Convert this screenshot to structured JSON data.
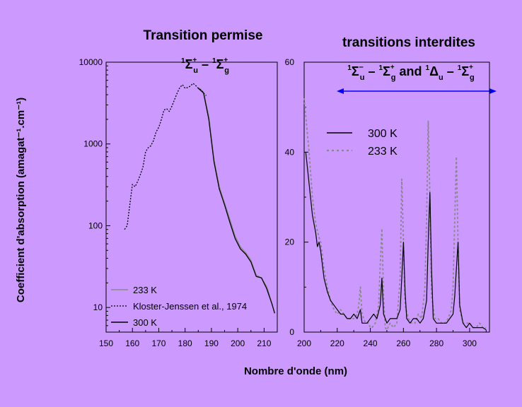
{
  "chart_data": [
    {
      "type": "line",
      "title": "Transition permise",
      "term_label": "¹Σ⁺u – ¹Σ⁺g",
      "xlabel": "Nombre d'onde (nm)",
      "ylabel": "Coefficient d'absorption (amagat⁻¹.cm⁻¹)",
      "xlim": [
        150,
        215
      ],
      "ylim": [
        5,
        10000
      ],
      "yscale": "log",
      "grid": false,
      "legend_position": "bottom-left",
      "x_ticks": [
        "150",
        "160",
        "170",
        "180",
        "190",
        "200",
        "210"
      ],
      "y_ticks": [
        "10",
        "100",
        "1000",
        "10000"
      ],
      "series": [
        {
          "name": "233 K",
          "color": "#888888",
          "style": "solid",
          "points": [
            [
              185,
              4900
            ],
            [
              187,
              4300
            ],
            [
              189,
              2200
            ],
            [
              191,
              650
            ],
            [
              193,
              300
            ],
            [
              195,
              190
            ],
            [
              197,
              120
            ],
            [
              199,
              75
            ],
            [
              201,
              55
            ],
            [
              203,
              47
            ],
            [
              205,
              38
            ],
            [
              207,
              25
            ],
            [
              209,
              23
            ],
            [
              211,
              18
            ],
            [
              213,
              11
            ],
            [
              214,
              8.5
            ]
          ]
        },
        {
          "name": "Kloster-Jenssen et al., 1974",
          "color": "#000000",
          "style": "dotted",
          "points": [
            [
              157,
              90
            ],
            [
              158,
              100
            ],
            [
              159,
              180
            ],
            [
              160,
              320
            ],
            [
              161,
              300
            ],
            [
              162,
              350
            ],
            [
              163,
              420
            ],
            [
              164,
              520
            ],
            [
              165,
              800
            ],
            [
              166,
              900
            ],
            [
              167,
              950
            ],
            [
              168,
              1100
            ],
            [
              169,
              1400
            ],
            [
              170,
              1600
            ],
            [
              171,
              2000
            ],
            [
              172,
              2600
            ],
            [
              173,
              2700
            ],
            [
              174,
              2500
            ],
            [
              175,
              2900
            ],
            [
              176,
              3500
            ],
            [
              177,
              4200
            ],
            [
              178,
              4900
            ],
            [
              179,
              5300
            ],
            [
              180,
              4800
            ],
            [
              181,
              4900
            ],
            [
              182,
              5100
            ],
            [
              183,
              5500
            ],
            [
              184,
              5200
            ],
            [
              185,
              4800
            ],
            [
              186,
              4600
            ],
            [
              187,
              4200
            ],
            [
              188,
              3900
            ]
          ]
        },
        {
          "name": "300 K",
          "color": "#000000",
          "style": "solid",
          "points": [
            [
              185,
              4800
            ],
            [
              187,
              4200
            ],
            [
              189,
              2000
            ],
            [
              191,
              600
            ],
            [
              193,
              280
            ],
            [
              195,
              180
            ],
            [
              197,
              110
            ],
            [
              199,
              70
            ],
            [
              201,
              52
            ],
            [
              203,
              45
            ],
            [
              205,
              36
            ],
            [
              207,
              24
            ],
            [
              209,
              23
            ],
            [
              211,
              17
            ],
            [
              213,
              11
            ],
            [
              214,
              8.5
            ]
          ]
        }
      ]
    },
    {
      "type": "line",
      "title": "transitions interdites",
      "term_label": "¹Σ⁻u – ¹Σ⁺g and ¹Δu – ¹Σ⁺g",
      "xlabel": "Nombre d'onde (nm)",
      "xlim": [
        200,
        312
      ],
      "ylim": [
        0,
        60
      ],
      "yscale": "linear",
      "grid": false,
      "legend_position": "top-left",
      "x_ticks": [
        "200",
        "220",
        "240",
        "260",
        "280",
        "300"
      ],
      "y_ticks": [
        "0",
        "20",
        "40",
        "60"
      ],
      "series": [
        {
          "name": "300 K",
          "color": "#000000",
          "style": "solid",
          "points": [
            [
              201,
              40
            ],
            [
              203,
              33
            ],
            [
              205,
              26
            ],
            [
              207,
              22
            ],
            [
              208,
              19
            ],
            [
              209,
              20
            ],
            [
              210,
              18
            ],
            [
              212,
              12
            ],
            [
              214,
              9
            ],
            [
              216,
              7
            ],
            [
              218,
              6
            ],
            [
              220,
              5
            ],
            [
              222,
              4
            ],
            [
              224,
              4
            ],
            [
              226,
              3
            ],
            [
              228,
              3
            ],
            [
              230,
              4
            ],
            [
              232,
              3
            ],
            [
              234,
              5
            ],
            [
              235,
              2
            ],
            [
              238,
              2
            ],
            [
              240,
              3
            ],
            [
              242,
              4
            ],
            [
              244,
              3
            ],
            [
              246,
              6
            ],
            [
              247,
              12
            ],
            [
              248,
              4
            ],
            [
              250,
              2
            ],
            [
              252,
              3
            ],
            [
              254,
              3
            ],
            [
              256,
              3
            ],
            [
              258,
              5
            ],
            [
              259,
              12
            ],
            [
              260,
              20
            ],
            [
              261,
              9
            ],
            [
              262,
              3
            ],
            [
              264,
              2
            ],
            [
              266,
              3
            ],
            [
              268,
              3
            ],
            [
              270,
              2
            ],
            [
              272,
              3
            ],
            [
              274,
              7
            ],
            [
              275,
              20
            ],
            [
              276,
              31
            ],
            [
              277,
              14
            ],
            [
              278,
              3
            ],
            [
              280,
              2
            ],
            [
              282,
              2
            ],
            [
              284,
              2
            ],
            [
              286,
              2
            ],
            [
              288,
              3
            ],
            [
              290,
              4
            ],
            [
              291,
              8
            ],
            [
              292,
              14
            ],
            [
              293,
              20
            ],
            [
              294,
              6
            ],
            [
              296,
              2
            ],
            [
              298,
              1
            ],
            [
              300,
              2
            ],
            [
              302,
              1
            ],
            [
              304,
              1
            ],
            [
              306,
              1
            ],
            [
              308,
              1
            ],
            [
              310,
              0.5
            ]
          ]
        },
        {
          "name": "233 K",
          "color": "#888888",
          "style": "dotted",
          "points": [
            [
              200,
              52
            ],
            [
              201,
              48
            ],
            [
              203,
              40
            ],
            [
              205,
              30
            ],
            [
              207,
              24
            ],
            [
              209,
              21
            ],
            [
              210,
              20
            ],
            [
              212,
              14
            ],
            [
              214,
              10
            ],
            [
              216,
              7
            ],
            [
              218,
              5
            ],
            [
              220,
              4
            ],
            [
              222,
              5
            ],
            [
              224,
              4
            ],
            [
              226,
              3
            ],
            [
              228,
              3
            ],
            [
              230,
              3
            ],
            [
              232,
              4
            ],
            [
              233,
              6
            ],
            [
              234,
              10
            ],
            [
              235,
              4
            ],
            [
              237,
              2
            ],
            [
              239,
              2
            ],
            [
              240,
              1
            ],
            [
              241,
              1
            ],
            [
              243,
              2
            ],
            [
              245,
              6
            ],
            [
              246,
              15
            ],
            [
              247,
              23
            ],
            [
              248,
              8
            ],
            [
              249,
              1
            ],
            [
              250,
              0.5
            ],
            [
              252,
              2
            ],
            [
              254,
              1
            ],
            [
              256,
              2
            ],
            [
              258,
              12
            ],
            [
              259,
              34
            ],
            [
              260,
              20
            ],
            [
              261,
              6
            ],
            [
              263,
              3
            ],
            [
              265,
              2
            ],
            [
              267,
              2
            ],
            [
              269,
              4
            ],
            [
              271,
              3
            ],
            [
              273,
              10
            ],
            [
              274,
              25
            ],
            [
              275,
              47
            ],
            [
              276,
              30
            ],
            [
              277,
              8
            ],
            [
              279,
              3
            ],
            [
              281,
              3
            ],
            [
              283,
              2
            ],
            [
              285,
              2
            ],
            [
              287,
              3
            ],
            [
              289,
              5
            ],
            [
              290,
              10
            ],
            [
              291,
              25
            ],
            [
              292,
              39
            ],
            [
              293,
              20
            ],
            [
              294,
              5
            ],
            [
              296,
              2
            ],
            [
              298,
              2
            ],
            [
              300,
              2
            ],
            [
              302,
              1
            ],
            [
              304,
              1
            ],
            [
              306,
              2
            ],
            [
              308,
              1
            ],
            [
              310,
              1
            ]
          ]
        }
      ],
      "arrow_color": "#0000ff"
    }
  ]
}
